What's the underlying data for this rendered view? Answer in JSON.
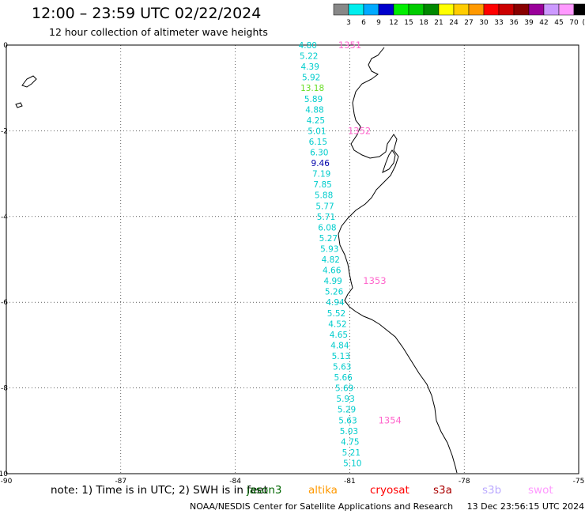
{
  "header": {
    "title": "12:00 – 23:59 UTC 02/22/2024",
    "subtitle": "12 hour collection of altimeter wave heights"
  },
  "legend": {
    "unit": "(ft)",
    "bins": [
      {
        "label": "3",
        "color": "#888888"
      },
      {
        "label": "6",
        "color": "#00eeee"
      },
      {
        "label": "9",
        "color": "#00aaff"
      },
      {
        "label": "12",
        "color": "#0000cc"
      },
      {
        "label": "15",
        "color": "#00ee00"
      },
      {
        "label": "18",
        "color": "#00cc00"
      },
      {
        "label": "21",
        "color": "#008800"
      },
      {
        "label": "24",
        "color": "#ffff00"
      },
      {
        "label": "27",
        "color": "#ffcc00"
      },
      {
        "label": "30",
        "color": "#ff9900"
      },
      {
        "label": "33",
        "color": "#ff0000"
      },
      {
        "label": "36",
        "color": "#cc0000"
      },
      {
        "label": "39",
        "color": "#880000"
      },
      {
        "label": "42",
        "color": "#990099"
      },
      {
        "label": "45",
        "color": "#cc99ff"
      },
      {
        "label": "70",
        "color": "#ff99ff"
      },
      {
        "label": "",
        "color": "#000000"
      }
    ]
  },
  "axes": {
    "x_ticks": [
      "-90",
      "-87",
      "-84",
      "-81",
      "-78",
      "-75"
    ],
    "y_ticks": [
      "0",
      "-2",
      "-4",
      "-6",
      "-8",
      "-10"
    ],
    "lon_range": [
      -90,
      -75
    ],
    "lat_range": [
      -10,
      0
    ],
    "grid": "dotted"
  },
  "chart_data": {
    "type": "scatter",
    "x_label": "",
    "y_label": "",
    "observations": [
      {
        "value": "4.80",
        "lat": 0.0,
        "lon": -82.1,
        "color": "#00cccc"
      },
      {
        "value": "5.22",
        "lat": -0.25,
        "lon": -82.07,
        "color": "#00cccc"
      },
      {
        "value": "4.39",
        "lat": -0.5,
        "lon": -82.04,
        "color": "#00cccc"
      },
      {
        "value": "5.92",
        "lat": -0.75,
        "lon": -82.01,
        "color": "#00cccc"
      },
      {
        "value": "13.18",
        "lat": -1.0,
        "lon": -81.98,
        "color": "#66dd22"
      },
      {
        "value": "5.89",
        "lat": -1.25,
        "lon": -81.95,
        "color": "#00cccc"
      },
      {
        "value": "4.88",
        "lat": -1.5,
        "lon": -81.92,
        "color": "#00cccc"
      },
      {
        "value": "4.25",
        "lat": -1.75,
        "lon": -81.89,
        "color": "#00cccc"
      },
      {
        "value": "5.01",
        "lat": -2.0,
        "lon": -81.86,
        "color": "#00cccc"
      },
      {
        "value": "6.15",
        "lat": -2.25,
        "lon": -81.83,
        "color": "#00cccc"
      },
      {
        "value": "6.30",
        "lat": -2.5,
        "lon": -81.8,
        "color": "#00cccc"
      },
      {
        "value": "9.46",
        "lat": -2.75,
        "lon": -81.77,
        "color": "#0000aa"
      },
      {
        "value": "7.19",
        "lat": -3.0,
        "lon": -81.74,
        "color": "#00cccc"
      },
      {
        "value": "7.85",
        "lat": -3.25,
        "lon": -81.71,
        "color": "#00cccc"
      },
      {
        "value": "5.88",
        "lat": -3.5,
        "lon": -81.68,
        "color": "#00cccc"
      },
      {
        "value": "5.77",
        "lat": -3.75,
        "lon": -81.65,
        "color": "#00cccc"
      },
      {
        "value": "5.71",
        "lat": -4.0,
        "lon": -81.62,
        "color": "#00cccc"
      },
      {
        "value": "6.08",
        "lat": -4.25,
        "lon": -81.59,
        "color": "#00cccc"
      },
      {
        "value": "5.27",
        "lat": -4.5,
        "lon": -81.56,
        "color": "#00cccc"
      },
      {
        "value": "5.93",
        "lat": -4.75,
        "lon": -81.53,
        "color": "#00cccc"
      },
      {
        "value": "4.82",
        "lat": -5.0,
        "lon": -81.5,
        "color": "#00cccc"
      },
      {
        "value": "4.66",
        "lat": -5.25,
        "lon": -81.47,
        "color": "#00cccc"
      },
      {
        "value": "4.99",
        "lat": -5.5,
        "lon": -81.44,
        "color": "#00cccc"
      },
      {
        "value": "5.26",
        "lat": -5.75,
        "lon": -81.41,
        "color": "#00cccc"
      },
      {
        "value": "4.94",
        "lat": -6.0,
        "lon": -81.38,
        "color": "#00cccc"
      },
      {
        "value": "5.52",
        "lat": -6.25,
        "lon": -81.35,
        "color": "#00cccc"
      },
      {
        "value": "4.52",
        "lat": -6.5,
        "lon": -81.32,
        "color": "#00cccc"
      },
      {
        "value": "4.65",
        "lat": -6.75,
        "lon": -81.29,
        "color": "#00cccc"
      },
      {
        "value": "4.84",
        "lat": -7.0,
        "lon": -81.26,
        "color": "#00cccc"
      },
      {
        "value": "5.13",
        "lat": -7.25,
        "lon": -81.23,
        "color": "#00cccc"
      },
      {
        "value": "5.63",
        "lat": -7.5,
        "lon": -81.2,
        "color": "#00cccc"
      },
      {
        "value": "5.66",
        "lat": -7.75,
        "lon": -81.17,
        "color": "#00cccc"
      },
      {
        "value": "5.69",
        "lat": -8.0,
        "lon": -81.14,
        "color": "#00cccc"
      },
      {
        "value": "5.93",
        "lat": -8.25,
        "lon": -81.11,
        "color": "#00cccc"
      },
      {
        "value": "5.29",
        "lat": -8.5,
        "lon": -81.08,
        "color": "#00cccc"
      },
      {
        "value": "5.63",
        "lat": -8.75,
        "lon": -81.05,
        "color": "#00cccc"
      },
      {
        "value": "5.03",
        "lat": -9.0,
        "lon": -81.02,
        "color": "#00cccc"
      },
      {
        "value": "4.75",
        "lat": -9.25,
        "lon": -80.99,
        "color": "#00cccc"
      },
      {
        "value": "5.21",
        "lat": -9.5,
        "lon": -80.96,
        "color": "#00cccc"
      },
      {
        "value": "5.10",
        "lat": -9.75,
        "lon": -80.93,
        "color": "#00cccc"
      }
    ],
    "time_markers": [
      {
        "label": "1351",
        "lat": 0.0,
        "lon": -81.3
      },
      {
        "label": "1352",
        "lat": -2.0,
        "lon": -81.05
      },
      {
        "label": "1353",
        "lat": -5.5,
        "lon": -80.65
      },
      {
        "label": "1354",
        "lat": -8.75,
        "lon": -80.25
      }
    ],
    "marker_color": "#ff66cc"
  },
  "note": {
    "text": "note: 1) Time is in UTC; 2) SWH is in feet"
  },
  "satellites": [
    {
      "name": "jason3",
      "color": "#006600"
    },
    {
      "name": "altika",
      "color": "#ff9900"
    },
    {
      "name": "cryosat",
      "color": "#ff0000"
    },
    {
      "name": "s3a",
      "color": "#aa0000"
    },
    {
      "name": "s3b",
      "color": "#bbaaff"
    },
    {
      "name": "swot",
      "color": "#ff99ff"
    }
  ],
  "footer": {
    "credit": "NOAA/NESDIS Center for Satellite Applications and Research",
    "timestamp": "13 Dec 23:56:15 UTC 2024"
  }
}
